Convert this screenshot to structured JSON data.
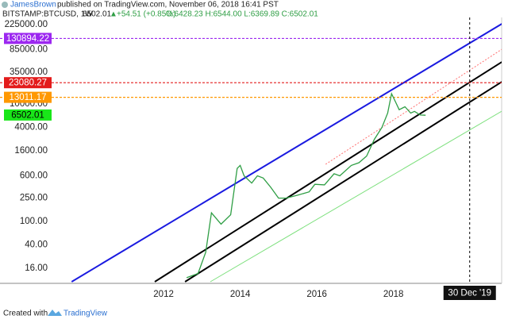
{
  "header": {
    "author": "JamesBrown",
    "published": "published on TradingView.com, November 06, 2018 16:41 PST",
    "symbol": "BITSTAMP:BTCUSD, 1W",
    "price": "6502.01",
    "arrow": "▲",
    "change": "+54.51 (+0.85%)",
    "ohlc": "O:6428.23 H:6544.00 L:6369.89 C:6502.01"
  },
  "chart_data": {
    "type": "line",
    "log_scale": true,
    "x": [
      2012.6,
      2012.9,
      2013.1,
      2013.25,
      2013.5,
      2013.75,
      2013.92,
      2014.0,
      2014.1,
      2014.3,
      2014.45,
      2014.6,
      2014.8,
      2015.0,
      2015.2,
      2015.5,
      2015.8,
      2015.95,
      2016.2,
      2016.45,
      2016.6,
      2016.9,
      2017.1,
      2017.3,
      2017.5,
      2017.7,
      2017.85,
      2017.95,
      2018.05,
      2018.15,
      2018.3,
      2018.45,
      2018.55,
      2018.7,
      2018.84
    ],
    "series": [
      {
        "name": "BTCUSD",
        "color": "#2e9e44",
        "values": [
          11,
          13,
          30,
          140,
          90,
          130,
          800,
          900,
          600,
          450,
          600,
          550,
          380,
          250,
          250,
          280,
          320,
          430,
          420,
          650,
          600,
          900,
          1000,
          1300,
          2500,
          4000,
          7000,
          15000,
          11000,
          8000,
          9000,
          7000,
          7500,
          6500,
          6450
        ]
      }
    ],
    "xlim": [
      2007.73,
      2020.99
    ],
    "ylim": [
      9.4,
      298000
    ],
    "xticks": [
      2012,
      2014,
      2016,
      2018,
      {
        "value": 2019.99,
        "label": "30 Dec '19"
      }
    ],
    "yticks": [
      {
        "value": 225000,
        "label": "225000.00"
      },
      {
        "value": 85000,
        "label": "85000.00"
      },
      {
        "value": 35000,
        "label": "35000.00"
      },
      {
        "value": 10000,
        "label": "10000.00"
      },
      {
        "value": 4000,
        "label": "4000.00"
      },
      {
        "value": 1600,
        "label": "1600.00"
      },
      {
        "value": 600,
        "label": "600.00"
      },
      {
        "value": 250,
        "label": "250.00"
      },
      {
        "value": 100,
        "label": "100.00"
      },
      {
        "value": 40,
        "label": "40.00"
      },
      {
        "value": 16,
        "label": "16.00"
      }
    ],
    "levels": [
      {
        "value": 130894.22,
        "color": "#9c27f0",
        "label_text_color": "#ffffff",
        "line": true
      },
      {
        "value": 23080.27,
        "color": "#e31b1b",
        "label_text_color": "#ffffff",
        "line": true
      },
      {
        "value": 13011.17,
        "color": "#ff9800",
        "label_text_color": "#ffffff",
        "line": true
      },
      {
        "value": 6502.01,
        "color": "#19e619",
        "label_text_color": "#000000",
        "line": false
      }
    ],
    "trendlines": [
      {
        "color": "#1a1ae0",
        "width": 2,
        "dash": false,
        "x": [
          2009.6,
          2020.83
        ],
        "y": [
          9.4,
          232000
        ]
      },
      {
        "color": "#000000",
        "width": 2,
        "dash": false,
        "x": [
          2011.77,
          2020.83
        ],
        "y": [
          9.4,
          52100
        ]
      },
      {
        "color": "#000000",
        "width": 2,
        "dash": false,
        "x": [
          2012.56,
          2020.83
        ],
        "y": [
          9.4,
          23900
        ]
      },
      {
        "color": "#ff7070",
        "width": 1,
        "dash": true,
        "x": [
          2016.23,
          2020.83
        ],
        "y": [
          942,
          85700
        ]
      },
      {
        "color": "#7ee07e",
        "width": 1,
        "dash": false,
        "x": [
          2013.22,
          2020.83
        ],
        "y": [
          9.4,
          7570
        ]
      }
    ]
  },
  "footer": {
    "created_with": "Created with",
    "brand": "TradingView"
  }
}
